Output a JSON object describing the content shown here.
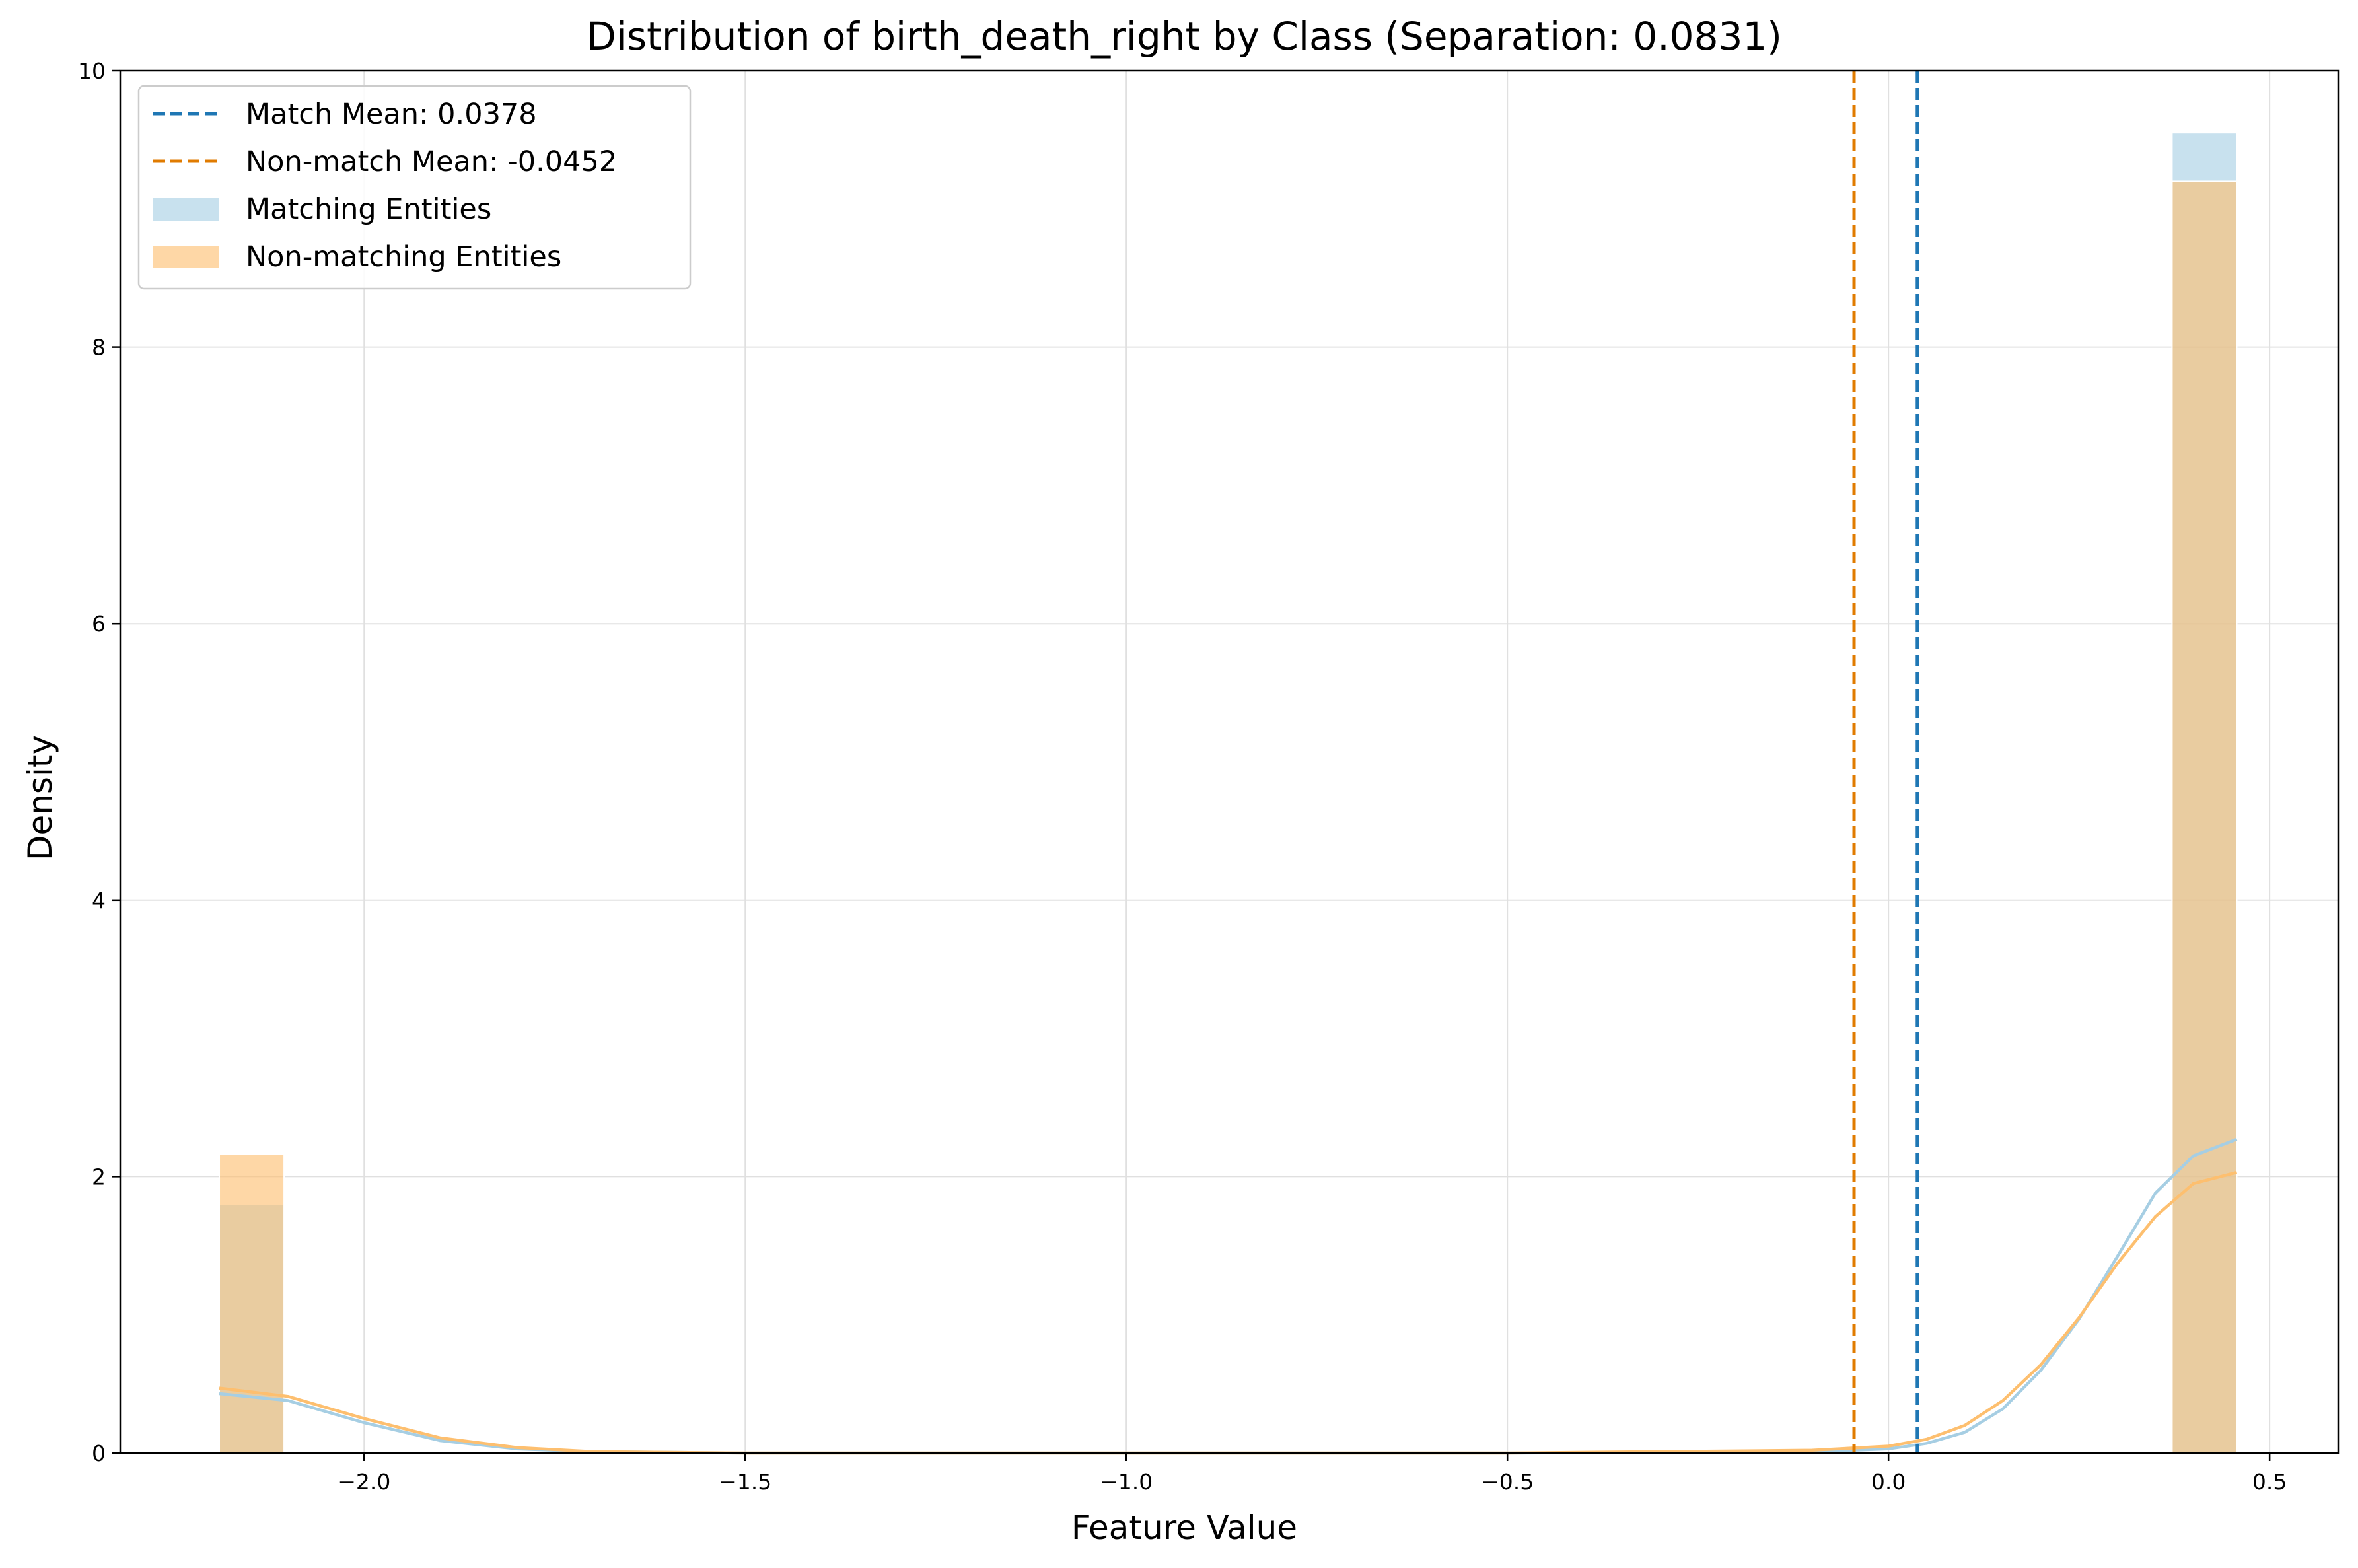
{
  "chart_data": {
    "type": "histogram",
    "title": "Distribution of birth_death_right by Class (Separation: 0.0831)",
    "xlabel": "Feature Value",
    "ylabel": "Density",
    "xlim": [
      -2.32,
      0.59
    ],
    "ylim": [
      0,
      10
    ],
    "xticks": [
      -2.0,
      -1.5,
      -1.0,
      -0.5,
      0.0,
      0.5
    ],
    "xtick_labels": [
      "−2.0",
      "−1.5",
      "−1.0",
      "−0.5",
      "0.0",
      "0.5"
    ],
    "yticks": [
      0,
      2,
      4,
      6,
      8,
      10
    ],
    "ytick_labels": [
      "0",
      "2",
      "4",
      "6",
      "8",
      "10"
    ],
    "grid": true,
    "legend_position": "top-left",
    "series": [
      {
        "name": "Matching Entities",
        "kind": "histogram",
        "color": "#a6cee3",
        "bins": [
          {
            "x0": -2.19,
            "x1": -2.105,
            "value": 1.8
          },
          {
            "x0": 0.372,
            "x1": 0.457,
            "value": 9.55
          }
        ]
      },
      {
        "name": "Non-matching Entities",
        "kind": "histogram",
        "color": "#fdbf6f",
        "bins": [
          {
            "x0": -2.19,
            "x1": -2.105,
            "value": 2.16
          },
          {
            "x0": 0.372,
            "x1": 0.457,
            "value": 9.2
          }
        ]
      },
      {
        "name": "Matching Entities KDE",
        "kind": "kde",
        "color": "#a6cee3",
        "x": [
          -2.19,
          -2.1,
          -2.0,
          -1.9,
          -1.8,
          -1.7,
          -1.5,
          -1.0,
          -0.5,
          -0.1,
          0.0,
          0.05,
          0.1,
          0.15,
          0.2,
          0.25,
          0.3,
          0.35,
          0.4,
          0.457
        ],
        "y": [
          0.43,
          0.38,
          0.22,
          0.09,
          0.03,
          0.01,
          0.0,
          0.0,
          0.0,
          0.01,
          0.03,
          0.07,
          0.15,
          0.32,
          0.6,
          0.97,
          1.42,
          1.88,
          2.15,
          2.27
        ]
      },
      {
        "name": "Non-matching Entities KDE",
        "kind": "kde",
        "color": "#fdbf6f",
        "x": [
          -2.19,
          -2.1,
          -2.0,
          -1.9,
          -1.8,
          -1.7,
          -1.5,
          -1.0,
          -0.5,
          -0.1,
          0.0,
          0.05,
          0.1,
          0.15,
          0.2,
          0.25,
          0.3,
          0.35,
          0.4,
          0.457
        ],
        "y": [
          0.47,
          0.41,
          0.25,
          0.11,
          0.04,
          0.01,
          0.0,
          0.0,
          0.0,
          0.02,
          0.05,
          0.1,
          0.2,
          0.38,
          0.64,
          0.98,
          1.37,
          1.71,
          1.95,
          2.03
        ]
      }
    ],
    "reference_lines": [
      {
        "label": "Match Mean: 0.0378",
        "x": 0.0378,
        "color": "#1f77b4",
        "style": "dashed"
      },
      {
        "label": "Non-match Mean: -0.0452",
        "x": -0.0452,
        "color": "#e07b00",
        "style": "dashed"
      }
    ],
    "legend": [
      {
        "label": "Match Mean: 0.0378",
        "kind": "dashed-line",
        "color": "#1f77b4"
      },
      {
        "label": "Non-match Mean: -0.0452",
        "kind": "dashed-line",
        "color": "#e07b00"
      },
      {
        "label": "Matching Entities",
        "kind": "patch",
        "color": "#a6cee3"
      },
      {
        "label": "Non-matching Entities",
        "kind": "patch",
        "color": "#fdbf6f"
      }
    ]
  }
}
